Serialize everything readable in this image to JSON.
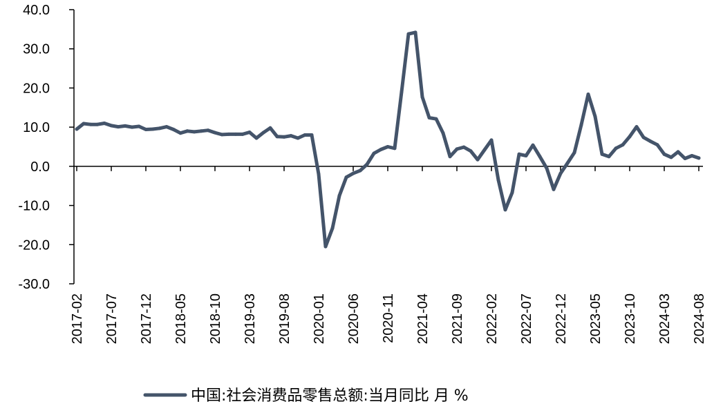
{
  "chart_data": {
    "type": "line",
    "title": "",
    "xlabel": "",
    "ylabel": "",
    "ylim": [
      -30,
      40
    ],
    "y_ticks": [
      "40.0",
      "30.0",
      "20.0",
      "10.0",
      "0.0",
      "-10.0",
      "-20.0",
      "-30.0"
    ],
    "x_tick_labels": [
      "2017-02",
      "2017-07",
      "2017-12",
      "2018-05",
      "2018-10",
      "2019-03",
      "2019-08",
      "2020-01",
      "2020-06",
      "2020-11",
      "2021-04",
      "2021-09",
      "2022-02",
      "2022-07",
      "2022-12",
      "2023-05",
      "2023-10",
      "2024-03",
      "2024-08"
    ],
    "grid": false,
    "legend_position": "bottom",
    "x": [
      "2017-02",
      "2017-03",
      "2017-04",
      "2017-05",
      "2017-06",
      "2017-07",
      "2017-08",
      "2017-09",
      "2017-10",
      "2017-11",
      "2017-12",
      "2018-01",
      "2018-02",
      "2018-03",
      "2018-04",
      "2018-05",
      "2018-06",
      "2018-07",
      "2018-08",
      "2018-09",
      "2018-10",
      "2018-11",
      "2018-12",
      "2019-01",
      "2019-02",
      "2019-03",
      "2019-04",
      "2019-05",
      "2019-06",
      "2019-07",
      "2019-08",
      "2019-09",
      "2019-10",
      "2019-11",
      "2019-12",
      "2020-01",
      "2020-02",
      "2020-03",
      "2020-04",
      "2020-05",
      "2020-06",
      "2020-07",
      "2020-08",
      "2020-09",
      "2020-10",
      "2020-11",
      "2020-12",
      "2021-01",
      "2021-02",
      "2021-03",
      "2021-04",
      "2021-05",
      "2021-06",
      "2021-07",
      "2021-08",
      "2021-09",
      "2021-10",
      "2021-11",
      "2021-12",
      "2022-01",
      "2022-02",
      "2022-03",
      "2022-04",
      "2022-05",
      "2022-06",
      "2022-07",
      "2022-08",
      "2022-09",
      "2022-10",
      "2022-11",
      "2022-12",
      "2023-01",
      "2023-02",
      "2023-03",
      "2023-04",
      "2023-05",
      "2023-06",
      "2023-07",
      "2023-08",
      "2023-09",
      "2023-10",
      "2023-11",
      "2023-12",
      "2024-01",
      "2024-02",
      "2024-03",
      "2024-04",
      "2024-05",
      "2024-06",
      "2024-07",
      "2024-08"
    ],
    "series": [
      {
        "name": "中国:社会消费品零售总额:当月同比 月 %",
        "color": "#44546A",
        "values": [
          9.5,
          10.9,
          10.7,
          10.7,
          11.0,
          10.4,
          10.1,
          10.3,
          10.0,
          10.2,
          9.4,
          9.5,
          9.7,
          10.1,
          9.4,
          8.5,
          9.0,
          8.8,
          9.0,
          9.2,
          8.6,
          8.1,
          8.2,
          8.2,
          8.2,
          8.7,
          7.2,
          8.6,
          9.8,
          7.6,
          7.5,
          7.8,
          7.2,
          8.0,
          8.0,
          -2.0,
          -20.5,
          -15.8,
          -7.5,
          -2.8,
          -1.8,
          -1.1,
          0.5,
          3.3,
          4.3,
          5.0,
          4.6,
          19.0,
          33.8,
          34.2,
          17.7,
          12.4,
          12.1,
          8.5,
          2.5,
          4.4,
          4.9,
          3.9,
          1.7,
          4.2,
          6.7,
          -3.5,
          -11.1,
          -6.7,
          3.1,
          2.7,
          5.4,
          2.5,
          -0.5,
          -5.9,
          -1.8,
          0.8,
          3.5,
          10.6,
          18.4,
          12.7,
          3.1,
          2.5,
          4.6,
          5.5,
          7.6,
          10.1,
          7.4,
          6.4,
          5.5,
          3.1,
          2.3,
          3.7,
          2.0,
          2.7,
          2.1
        ]
      }
    ]
  },
  "legend": {
    "items": [
      {
        "label": "中国:社会消费品零售总额:当月同比 月 %",
        "color": "#44546A"
      }
    ]
  }
}
